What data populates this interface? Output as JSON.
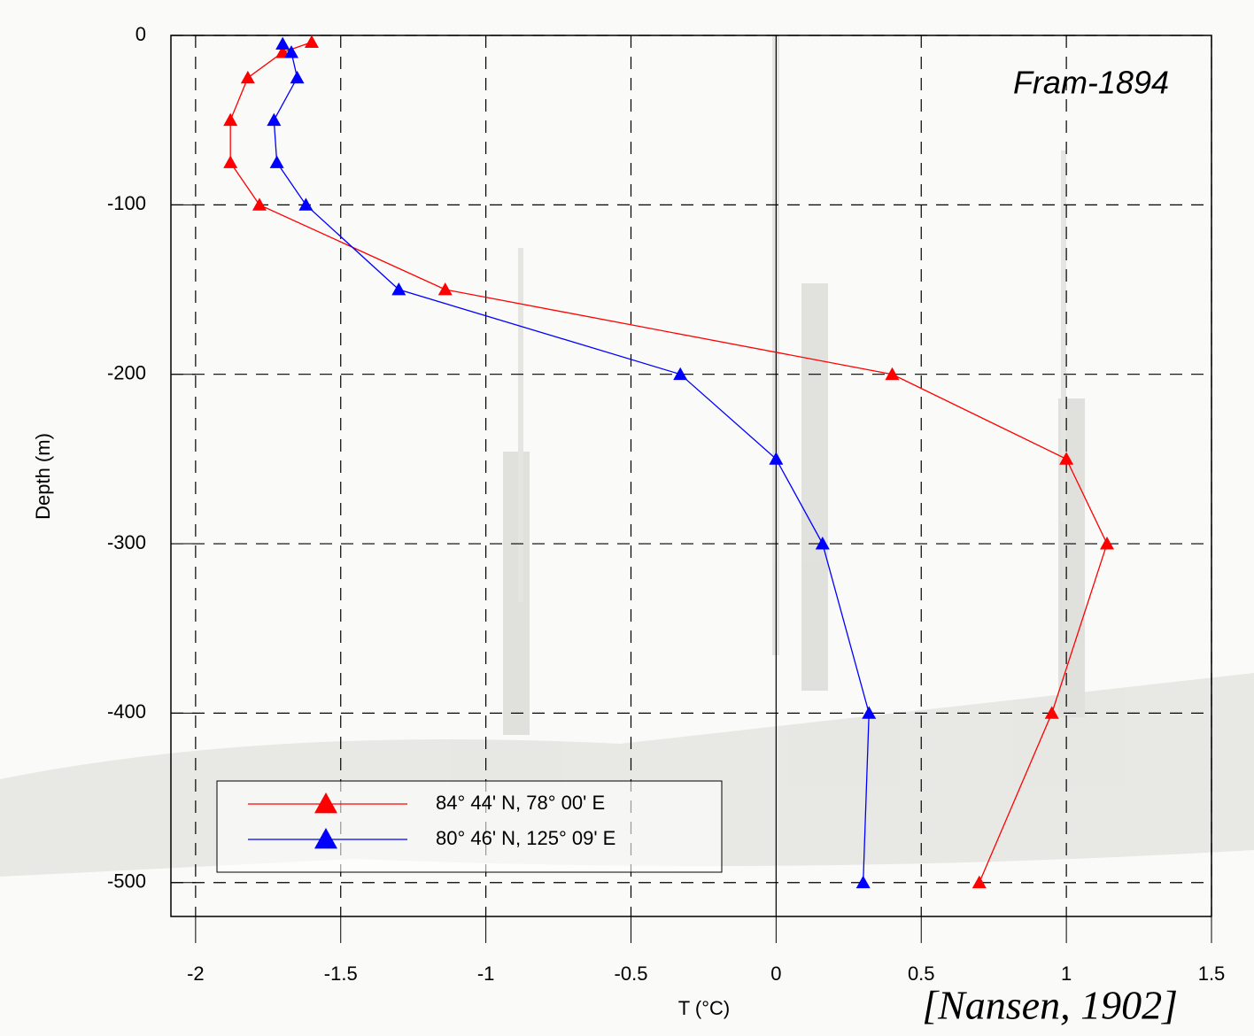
{
  "chart_data": {
    "type": "line",
    "annotation": "Fram-1894",
    "source": "[Nansen, 1902]",
    "x_label": "T (°C)",
    "y_label": "Depth (m)",
    "xlim": [
      -2.085,
      1.5
    ],
    "ylim": [
      -520,
      0
    ],
    "xticks": [
      -2,
      -1.5,
      -1,
      -0.5,
      0,
      0.5,
      1,
      1.5
    ],
    "yticks": [
      0,
      -100,
      -200,
      -300,
      -400,
      -500
    ],
    "grid": true,
    "legend": "lower left",
    "series": [
      {
        "name": "84° 44' N, 78° 00' E",
        "color": "#ff0000",
        "x": [
          -1.6,
          -1.7,
          -1.82,
          -1.88,
          -1.88,
          -1.78,
          -1.14,
          0.4,
          1.0,
          1.14,
          0.95,
          0.7
        ],
        "values": [
          -4,
          -10,
          -25,
          -50,
          -75,
          -100,
          -150,
          -200,
          -250,
          -300,
          -400,
          -500
        ]
      },
      {
        "name": "80° 46' N, 125° 09' E",
        "color": "#0000ff",
        "x": [
          -1.7,
          -1.67,
          -1.65,
          -1.73,
          -1.72,
          -1.62,
          -1.3,
          -0.33,
          0,
          0.16,
          0.32,
          0.3
        ],
        "values": [
          -5,
          -10,
          -25,
          -50,
          -75,
          -100,
          -150,
          -200,
          -250,
          -300,
          -400,
          -500
        ]
      }
    ]
  }
}
